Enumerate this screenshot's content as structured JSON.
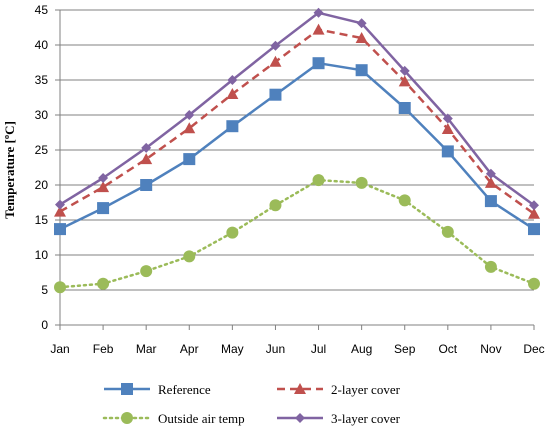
{
  "chart_data": {
    "type": "line",
    "title": "",
    "xlabel": "",
    "ylabel": "Temperature [ºC]",
    "ylim": [
      0,
      45
    ],
    "yticks": [
      0,
      5,
      10,
      15,
      20,
      25,
      30,
      35,
      40,
      45
    ],
    "grid": "horizontal",
    "legend_position": "bottom",
    "categories": [
      "Jan",
      "Feb",
      "Mar",
      "Apr",
      "May",
      "Jun",
      "Jul",
      "Aug",
      "Sep",
      "Oct",
      "Nov",
      "Dec"
    ],
    "series": [
      {
        "name": "Reference",
        "color": "#4f81bd",
        "marker": "square",
        "dash": "solid",
        "values": [
          13.7,
          16.7,
          20.0,
          23.7,
          28.4,
          32.9,
          37.4,
          36.4,
          31.0,
          24.8,
          17.7,
          13.7
        ]
      },
      {
        "name": "2-layer cover",
        "color": "#c0504d",
        "marker": "triangle",
        "dash": "dashed",
        "values": [
          16.2,
          19.7,
          23.7,
          28.1,
          33.0,
          37.6,
          42.2,
          41.0,
          34.8,
          28.0,
          20.3,
          15.9
        ]
      },
      {
        "name": "Outside air temp",
        "color": "#9bbb59",
        "marker": "circle",
        "dash": "dotted",
        "values": [
          5.4,
          5.9,
          7.7,
          9.8,
          13.2,
          17.1,
          20.7,
          20.3,
          17.8,
          13.3,
          8.3,
          5.9
        ]
      },
      {
        "name": "3-layer cover",
        "color": "#8064a2",
        "marker": "diamond",
        "dash": "solid",
        "values": [
          17.2,
          21.0,
          25.3,
          30.0,
          35.0,
          39.9,
          44.6,
          43.1,
          36.3,
          29.5,
          21.6,
          17.1
        ]
      }
    ]
  }
}
